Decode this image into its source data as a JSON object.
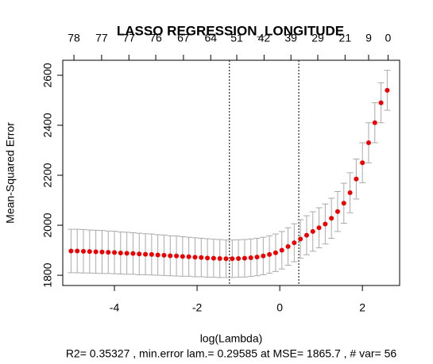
{
  "chart_data": {
    "type": "scatter",
    "title": "LASSO REGRESSION_LONGITUDE",
    "subtitle": "R2= 0.35327 , min.error lam.= 0.29585  at MSE= 1865.7 , # var= 56",
    "x_label": "log(Lambda)",
    "y_label": "Mean-Squared Error",
    "color": "#ee0000",
    "error_color": "#aaaaaa",
    "x": [
      2.6,
      2.45,
      2.3,
      2.15,
      2.0,
      1.85,
      1.7,
      1.55,
      1.4,
      1.25,
      1.1,
      0.95,
      0.8,
      0.65,
      0.5,
      0.35,
      0.2,
      0.05,
      -0.1,
      -0.25,
      -0.4,
      -0.55,
      -0.7,
      -0.85,
      -1.0,
      -1.15,
      -1.3,
      -1.45,
      -1.6,
      -1.75,
      -1.9,
      -2.05,
      -2.2,
      -2.35,
      -2.5,
      -2.65,
      -2.8,
      -2.95,
      -3.1,
      -3.25,
      -3.4,
      -3.55,
      -3.7,
      -3.85,
      -4.0,
      -4.15,
      -4.3,
      -4.45,
      -4.6,
      -4.75,
      -4.9,
      -5.05
    ],
    "values": [
      2540,
      2490,
      2410,
      2330,
      2250,
      2185,
      2130,
      2088,
      2055,
      2028,
      2005,
      1990,
      1975,
      1960,
      1945,
      1930,
      1915,
      1900,
      1890,
      1883,
      1877,
      1873,
      1870,
      1868,
      1867,
      1866,
      1866,
      1867,
      1868,
      1869,
      1871,
      1872,
      1874,
      1875,
      1877,
      1878,
      1880,
      1881,
      1883,
      1884,
      1885,
      1887,
      1888,
      1889,
      1891,
      1892,
      1893,
      1894,
      1895,
      1896,
      1897,
      1897
    ],
    "errors": [
      80,
      80,
      80,
      80,
      80,
      80,
      80,
      80,
      80,
      80,
      80,
      80,
      79,
      78,
      77,
      76,
      75,
      75,
      75,
      75,
      75,
      75,
      75,
      75,
      75,
      75,
      75,
      76,
      76,
      77,
      77,
      78,
      78,
      79,
      80,
      80,
      81,
      81,
      82,
      82,
      83,
      83,
      84,
      84,
      85,
      85,
      86,
      86,
      86,
      87,
      87,
      87
    ],
    "vlines": [
      -1.218,
      0.46
    ],
    "xlim": [
      -5.25,
      2.9
    ],
    "ylim": [
      1759,
      2660
    ],
    "xticks": [
      -4,
      -2,
      0,
      2
    ],
    "yticks": [
      1800,
      2000,
      2200,
      2400,
      2600
    ],
    "x2ticks": [
      {
        "value": -4.98,
        "label": "78"
      },
      {
        "value": -4.31,
        "label": "77"
      },
      {
        "value": -3.65,
        "label": "77"
      },
      {
        "value": -3.0,
        "label": "76"
      },
      {
        "value": -2.33,
        "label": "67"
      },
      {
        "value": -1.67,
        "label": "64"
      },
      {
        "value": -1.04,
        "label": "51"
      },
      {
        "value": -0.38,
        "label": "42"
      },
      {
        "value": 0.27,
        "label": "39"
      },
      {
        "value": 0.92,
        "label": "29"
      },
      {
        "value": 1.58,
        "label": "21"
      },
      {
        "value": 2.15,
        "label": "9"
      },
      {
        "value": 2.62,
        "label": "0"
      }
    ]
  }
}
